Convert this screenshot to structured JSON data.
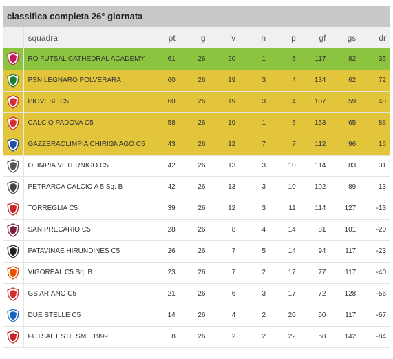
{
  "title": "classifica completa 26° giornata",
  "headers": {
    "squadra": "squadra",
    "pt": "pt",
    "g": "g",
    "v": "v",
    "n": "n",
    "p": "p",
    "gf": "gf",
    "gs": "gs",
    "dr": "dr"
  },
  "colors": {
    "zone_green": "#8cc43f",
    "zone_yellow": "#e3c53c",
    "title_bg": "#c9c9c9",
    "header_bg": "#f0f0f0"
  },
  "rows": [
    {
      "team": "RO FUTSAL CATHEDRAL ACADEMY",
      "pt": "61",
      "g": "26",
      "v": "20",
      "n": "1",
      "p": "5",
      "gf": "117",
      "gs": "82",
      "dr": "35",
      "zone": "green",
      "logo": "ro-futsal-logo-icon",
      "logo_color": "#c2185b"
    },
    {
      "team": "PSN LEGNARO POLVERARA",
      "pt": "60",
      "g": "26",
      "v": "19",
      "n": "3",
      "p": "4",
      "gf": "134",
      "gs": "62",
      "dr": "72",
      "zone": "yellow",
      "logo": "psn-legnaro-logo-icon",
      "logo_color": "#1b7a2e"
    },
    {
      "team": "PIOVESE C5",
      "pt": "60",
      "g": "26",
      "v": "19",
      "n": "3",
      "p": "4",
      "gf": "107",
      "gs": "59",
      "dr": "48",
      "zone": "yellow",
      "logo": "piovese-logo-icon",
      "logo_color": "#d32f2f"
    },
    {
      "team": "CALCIO PADOVA C5",
      "pt": "58",
      "g": "26",
      "v": "19",
      "n": "1",
      "p": "6",
      "gf": "153",
      "gs": "65",
      "dr": "88",
      "zone": "yellow",
      "logo": "calcio-padova-logo-icon",
      "logo_color": "#d32f2f"
    },
    {
      "team": "GAZZERAOLIMPIA CHIRIGNAGO C5",
      "pt": "43",
      "g": "26",
      "v": "12",
      "n": "7",
      "p": "7",
      "gf": "112",
      "gs": "96",
      "dr": "16",
      "zone": "yellow",
      "logo": "gazzera-olimpia-logo-icon",
      "logo_color": "#1e4fa0"
    },
    {
      "team": "OLIMPIA VETERNIGO C5",
      "pt": "42",
      "g": "26",
      "v": "13",
      "n": "3",
      "p": "10",
      "gf": "114",
      "gs": "83",
      "dr": "31",
      "zone": "none",
      "logo": "olimpia-veternigo-logo-icon",
      "logo_color": "#555555"
    },
    {
      "team": "PETRARCA CALCIO A 5 Sq. B",
      "pt": "42",
      "g": "26",
      "v": "13",
      "n": "3",
      "p": "10",
      "gf": "102",
      "gs": "89",
      "dr": "13",
      "zone": "none",
      "logo": "petrarca-logo-icon",
      "logo_color": "#444444"
    },
    {
      "team": "TORREGLIA C5",
      "pt": "39",
      "g": "26",
      "v": "12",
      "n": "3",
      "p": "11",
      "gf": "114",
      "gs": "127",
      "dr": "-13",
      "zone": "none",
      "logo": "torreglia-logo-icon",
      "logo_color": "#c62828"
    },
    {
      "team": "SAN PRECARIO C5",
      "pt": "28",
      "g": "26",
      "v": "8",
      "n": "4",
      "p": "14",
      "gf": "81",
      "gs": "101",
      "dr": "-20",
      "zone": "none",
      "logo": "san-precario-logo-icon",
      "logo_color": "#7b1f3a"
    },
    {
      "team": "PATAVINAE HIRUNDINES C5",
      "pt": "26",
      "g": "26",
      "v": "7",
      "n": "5",
      "p": "14",
      "gf": "94",
      "gs": "117",
      "dr": "-23",
      "zone": "none",
      "logo": "patavinae-hirundines-logo-icon",
      "logo_color": "#222222"
    },
    {
      "team": "VIGOREAL C5 Sq. B",
      "pt": "23",
      "g": "26",
      "v": "7",
      "n": "2",
      "p": "17",
      "gf": "77",
      "gs": "117",
      "dr": "-40",
      "zone": "none",
      "logo": "vigoreal-logo-icon",
      "logo_color": "#e65100"
    },
    {
      "team": "GS ARIANO C5",
      "pt": "21",
      "g": "26",
      "v": "6",
      "n": "3",
      "p": "17",
      "gf": "72",
      "gs": "128",
      "dr": "-56",
      "zone": "none",
      "logo": "gs-ariano-logo-icon",
      "logo_color": "#d32f2f"
    },
    {
      "team": "DUE STELLE C5",
      "pt": "14",
      "g": "26",
      "v": "4",
      "n": "2",
      "p": "20",
      "gf": "50",
      "gs": "117",
      "dr": "-67",
      "zone": "none",
      "logo": "due-stelle-logo-icon",
      "logo_color": "#1565c0"
    },
    {
      "team": "FUTSAL ESTE SME 1999",
      "pt": "8",
      "g": "26",
      "v": "2",
      "n": "2",
      "p": "22",
      "gf": "58",
      "gs": "142",
      "dr": "-84",
      "zone": "none",
      "logo": "futsal-este-logo-icon",
      "logo_color": "#c62828"
    }
  ]
}
